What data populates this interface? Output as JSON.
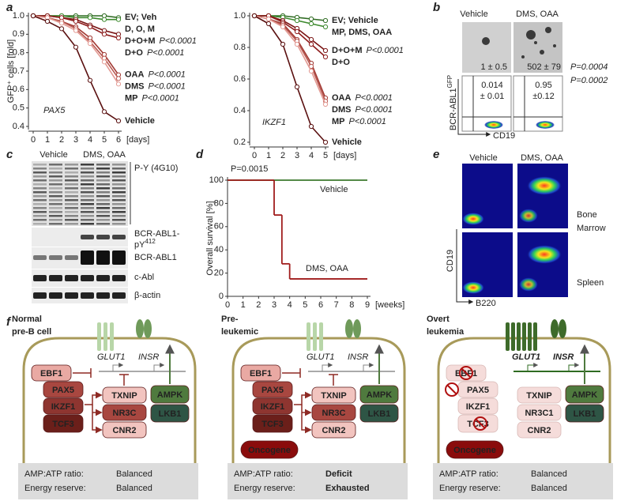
{
  "panel_labels": [
    "a",
    "b",
    "c",
    "d",
    "e",
    "f"
  ],
  "chart_data": [
    {
      "type": "line",
      "annotation": "PAX5",
      "ylabel": "GFP⁺ cells [fold]",
      "xlabel": "[days]",
      "x": [
        0,
        1,
        2,
        3,
        4,
        5,
        6
      ],
      "xlim": [
        0,
        6
      ],
      "xticks": [
        0,
        1,
        2,
        3,
        4,
        5,
        6
      ],
      "ylim": [
        0.4,
        1
      ],
      "yticks": [
        0.4,
        0.5,
        0.6,
        0.7,
        0.8,
        0.9,
        {
          "value": 1,
          "label": "1.0"
        }
      ],
      "series": [
        {
          "name": "EV; Veh",
          "color": "#2f6b22",
          "label_color": "#3d7a2e",
          "values": [
            1,
            1,
            1,
            1,
            1,
            1,
            0.99
          ]
        },
        {
          "name": "D, O, M",
          "color": "#3d8a2e",
          "label_color": "#3d7a2e",
          "values": [
            1,
            1,
            1,
            0.99,
            0.99,
            0.98,
            0.98
          ]
        },
        {
          "name": "D+O+M",
          "color": "#7a1414",
          "label_color": "#7a1414",
          "p_value": "P<0.0001",
          "values": [
            1,
            1,
            0.99,
            0.98,
            0.95,
            0.92,
            0.9
          ]
        },
        {
          "name": "D+O",
          "color": "#8e1c1c",
          "label_color": "#8e1c1c",
          "p_value": "P<0.0001",
          "values": [
            1,
            1,
            0.99,
            0.97,
            0.94,
            0.9,
            0.88
          ]
        },
        {
          "name": "OAA",
          "color": "#a23a34",
          "label_color": "#a23a34",
          "p_value": "P<0.0001",
          "values": [
            1,
            0.99,
            0.97,
            0.94,
            0.88,
            0.79,
            0.68
          ]
        },
        {
          "name": "DMS",
          "color": "#b85a53",
          "label_color": "#b85a53",
          "p_value": "P<0.0001",
          "values": [
            1,
            0.99,
            0.97,
            0.93,
            0.86,
            0.77,
            0.66
          ]
        },
        {
          "name": "MP",
          "color": "#e39a93",
          "label_color": "#e39a93",
          "p_value": "P<0.0001",
          "values": [
            1,
            0.99,
            0.96,
            0.92,
            0.85,
            0.75,
            0.63
          ]
        },
        {
          "name": "Vehicle",
          "color": "#5a1010",
          "label_color": "#a0a0a0",
          "values": [
            1,
            0.97,
            0.93,
            0.83,
            0.65,
            0.48,
            0.43
          ]
        }
      ]
    },
    {
      "type": "line",
      "annotation": "IKZF1",
      "xlabel": "[days]",
      "x": [
        0,
        1,
        2,
        3,
        4,
        5
      ],
      "xlim": [
        0,
        5
      ],
      "xticks": [
        0,
        1,
        2,
        3,
        4,
        5
      ],
      "ylim": [
        0.2,
        1
      ],
      "yticks": [
        0.2,
        0.4,
        0.6,
        0.8,
        {
          "value": 1,
          "label": "1.0"
        }
      ],
      "series": [
        {
          "name": "EV; Vehicle",
          "color": "#2f6b22",
          "label_color": "#3d7a2e",
          "values": [
            1,
            1,
            1,
            0.99,
            0.98,
            0.97
          ]
        },
        {
          "name": "MP, DMS, OAA",
          "color": "#3d8a2e",
          "label_color": "#2f6b22",
          "values": [
            1,
            1,
            0.99,
            0.97,
            0.95,
            0.93
          ]
        },
        {
          "name": "D+O+M",
          "color": "#7a1414",
          "label_color": "#7a1414",
          "p_value": "P<0.0001",
          "values": [
            1,
            1,
            0.97,
            0.92,
            0.85,
            0.78
          ]
        },
        {
          "name": "D+O",
          "color": "#8e1c1c",
          "label_color": "#8e1c1c",
          "values": [
            1,
            1,
            0.96,
            0.9,
            0.82,
            0.74
          ]
        },
        {
          "name": "OAA",
          "color": "#a23a34",
          "label_color": "#a23a34",
          "p_value": "P<0.0001",
          "values": [
            1,
            0.98,
            0.95,
            0.85,
            0.7,
            0.48
          ]
        },
        {
          "name": "DMS",
          "color": "#b85a53",
          "label_color": "#b85a53",
          "p_value": "P<0.0001",
          "values": [
            1,
            0.98,
            0.94,
            0.84,
            0.68,
            0.46
          ]
        },
        {
          "name": "MP",
          "color": "#e39a93",
          "label_color": "#e39a93",
          "p_value": "P<0.0001",
          "values": [
            1,
            0.98,
            0.93,
            0.82,
            0.65,
            0.44
          ]
        },
        {
          "name": "Vehicle",
          "color": "#5a1010",
          "label_color": "#a0a0a0",
          "values": [
            1,
            0.95,
            0.82,
            0.55,
            0.3,
            0.2
          ]
        }
      ]
    },
    {
      "type": "step",
      "annotation": "P=0.0015",
      "ylabel": "Overall survival [%]",
      "xlabel": "[weeks]",
      "xlim": [
        0,
        9
      ],
      "xticks": [
        0,
        1,
        2,
        3,
        4,
        5,
        6,
        7,
        8,
        9
      ],
      "ylim": [
        0,
        100
      ],
      "yticks": [
        0,
        20,
        40,
        60,
        80,
        100
      ],
      "series": [
        {
          "name": "Vehicle",
          "color": "#3d7a2e",
          "x": [
            0
          ],
          "values": [
            100
          ]
        },
        {
          "name": "DMS, OAA",
          "color": "#a01c1c",
          "x": [
            0,
            3,
            3.5,
            4
          ],
          "values": [
            100,
            70,
            28,
            15
          ]
        }
      ]
    }
  ],
  "panel_b": {
    "columns": [
      "Vehicle",
      "DMS, OAA"
    ],
    "colony_counts": [
      "1 ± 0.5",
      "502 ± 79"
    ],
    "colony_p": "P=0.0004",
    "ylabel": {
      "text": "BCR-ABL1",
      "sup": "GFP"
    },
    "xlabel": "CD19",
    "gates": [
      [
        "0.014",
        "± 0.01"
      ],
      [
        "0.95",
        "±0.12"
      ]
    ],
    "gate_p": "P=0.0002"
  },
  "panel_c": {
    "columns": [
      "Vehicle",
      "DMS, OAA"
    ],
    "rows": [
      {
        "label": "P-Y (4G10)"
      },
      {
        "label": "BCR-ABL1-",
        "label2": "pY",
        "sup": "412"
      },
      {
        "label": "BCR-ABL1"
      },
      {
        "label": "c-Abl"
      },
      {
        "label": "β-actin"
      }
    ]
  },
  "panel_e": {
    "columns": [
      "Vehicle",
      "DMS, OAA"
    ],
    "rows": [
      [
        "Bone",
        "Marrow"
      ],
      [
        "Spleen"
      ]
    ],
    "ylabel": "CD19",
    "xlabel": "B220"
  },
  "panel_f": {
    "cells": [
      {
        "title": [
          "Normal",
          "pre-B cell"
        ],
        "glut1": "GLUT1",
        "insr": "INSR",
        "nodes": [
          "EBF1",
          "PAX5",
          "IKZF1",
          "TCF3",
          "TXNIP",
          "NR3C",
          "CNR2",
          "AMPK",
          "LKB1"
        ],
        "status": [
          {
            "label": "AMP:ATP ratio:",
            "value": "Balanced",
            "color": "#3d7a2e"
          },
          {
            "label": "Energy reserve:",
            "value": "Balanced",
            "color": "#3d7a2e"
          }
        ]
      },
      {
        "title": [
          "Pre-",
          "leukemic"
        ],
        "glut1": "GLUT1",
        "insr": "INSR",
        "nodes": [
          "EBF1",
          "PAX5",
          "IKZF1",
          "TCF3",
          "TXNIP",
          "NR3C",
          "CNR2",
          "AMPK",
          "LKB1",
          "Oncogene"
        ],
        "status": [
          {
            "label": "AMP:ATP ratio:",
            "value": "Deficit",
            "color": "#a01010"
          },
          {
            "label": "Energy reserve:",
            "value": "Exhausted",
            "color": "#a01010"
          }
        ]
      },
      {
        "title": [
          "Overt",
          "leukemia"
        ],
        "glut1": "GLUT1",
        "insr": "INSR",
        "nodes": [
          "EBF1",
          "PAX5",
          "IKZF1",
          "TCF3",
          "TXNIP",
          "NR3C1",
          "CNR2",
          "AMPK",
          "LKB1",
          "Oncogene"
        ],
        "status": [
          {
            "label": "AMP:ATP ratio:",
            "value": "Balanced",
            "color": "#3d7a2e"
          },
          {
            "label": "Energy reserve:",
            "value": "Balanced",
            "color": "#3d7a2e"
          }
        ]
      }
    ]
  }
}
